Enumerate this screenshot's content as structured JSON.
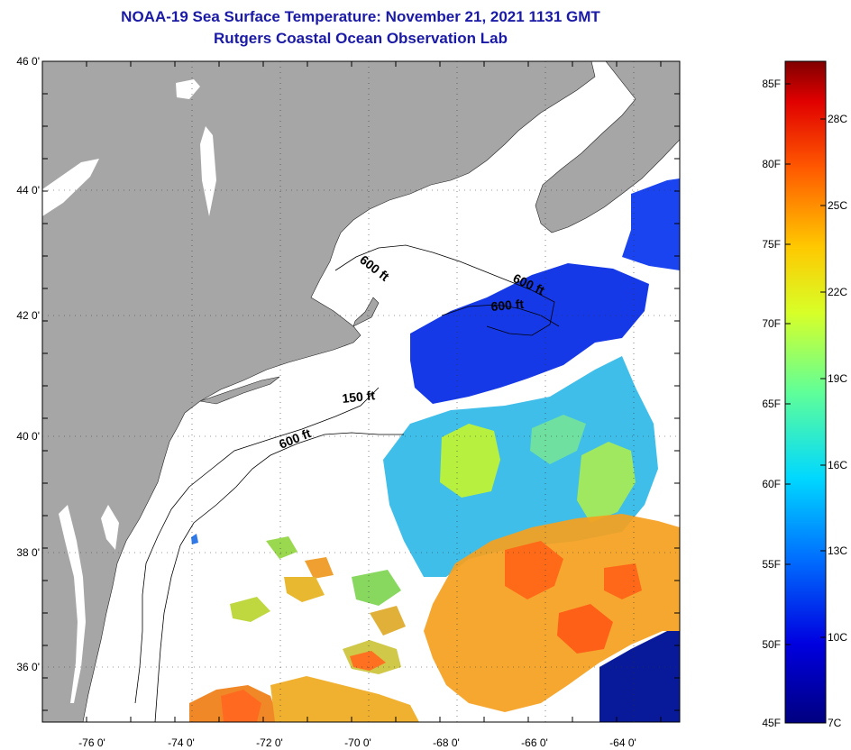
{
  "header": {
    "title": "NOAA-19 Sea Surface Temperature:  November 21, 2021 1131 GMT",
    "subtitle": "Rutgers Coastal Ocean Observation Lab"
  },
  "map": {
    "lat_labels": [
      "46 0'",
      "44 0'",
      "42 0'",
      "40 0'",
      "38 0'",
      "36 0'"
    ],
    "lon_labels": [
      "-76 0'",
      "-74 0'",
      "-72 0'",
      "-70 0'",
      "-68 0'",
      "-66 0'",
      "-64 0'"
    ],
    "depth_labels": [
      "600 ft",
      "600 ft",
      "600 ft",
      "150 ft",
      "600 ft"
    ],
    "colors": {
      "land": "#a6a6a6",
      "ocean": "#ffffff",
      "title": "#1a1aa6"
    }
  },
  "colorbar": {
    "fahrenheit_labels": [
      "85F",
      "80F",
      "75F",
      "70F",
      "65F",
      "60F",
      "55F",
      "50F",
      "45F"
    ],
    "celsius_labels": [
      "28C",
      "25C",
      "22C",
      "19C",
      "16C",
      "13C",
      "10C",
      "7C"
    ],
    "range_f": [
      45,
      86
    ],
    "range_c": [
      7,
      30
    ]
  }
}
